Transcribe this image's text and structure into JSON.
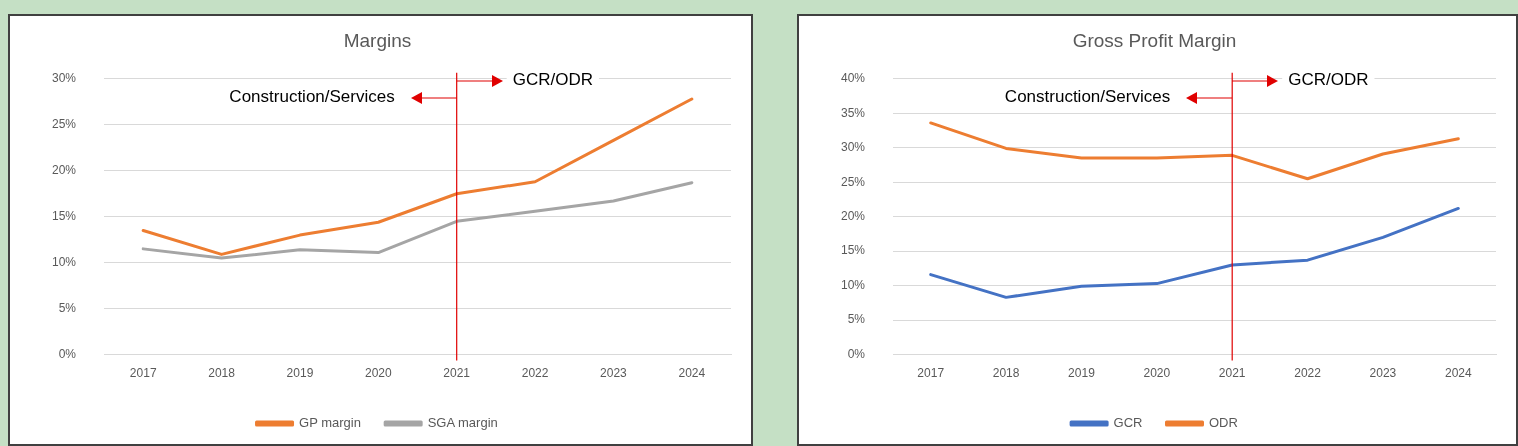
{
  "chart_data": [
    {
      "type": "line",
      "title": "Margins",
      "categories": [
        "2017",
        "2018",
        "2019",
        "2020",
        "2021",
        "2022",
        "2023",
        "2024"
      ],
      "series": [
        {
          "name": "GP margin",
          "color": "#ed7d31",
          "values": [
            13.5,
            10.9,
            13.0,
            14.4,
            17.5,
            18.8,
            23.3,
            27.8
          ]
        },
        {
          "name": "SGA margin",
          "color": "#a5a5a5",
          "values": [
            11.5,
            10.5,
            11.4,
            11.1,
            14.5,
            15.6,
            16.7,
            18.7
          ]
        }
      ],
      "ylim": [
        0,
        30
      ],
      "yticks": [
        {
          "value": 0,
          "label": "0%"
        },
        {
          "value": 5,
          "label": "5%"
        },
        {
          "value": 10,
          "label": "10%"
        },
        {
          "value": 15,
          "label": "15%"
        },
        {
          "value": 20,
          "label": "20%"
        },
        {
          "value": 25,
          "label": "25%"
        },
        {
          "value": 30,
          "label": "30%"
        }
      ],
      "grid": "y",
      "legend": "bottom",
      "marker": "none",
      "line_style": "solid",
      "ref_lines": [
        {
          "axis": "x",
          "value": "2021",
          "color": "#e00000"
        }
      ],
      "annotations": [
        "Construction/Services",
        {
          "text": "GCR/ODR",
          "x": "2021"
        }
      ]
    },
    {
      "type": "line",
      "title": "Gross Profit Margin",
      "categories": [
        "2017",
        "2018",
        "2019",
        "2020",
        "2021",
        "2022",
        "2023",
        "2024"
      ],
      "series": [
        {
          "name": "GCR",
          "color": "#4472c4",
          "values": [
            11.6,
            8.3,
            9.9,
            10.3,
            13.0,
            13.7,
            17.0,
            21.2
          ]
        },
        {
          "name": "ODR",
          "color": "#ed7d31",
          "values": [
            33.6,
            29.9,
            28.5,
            28.5,
            28.9,
            25.5,
            29.1,
            31.3
          ]
        }
      ],
      "ylim": [
        0,
        40
      ],
      "yticks": [
        {
          "value": 0,
          "label": "0%"
        },
        {
          "value": 5,
          "label": "5%"
        },
        {
          "value": 10,
          "label": "10%"
        },
        {
          "value": 15,
          "label": "15%"
        },
        {
          "value": 20,
          "label": "20%"
        },
        {
          "value": 25,
          "label": "25%"
        },
        {
          "value": 30,
          "label": "30%"
        },
        {
          "value": 35,
          "label": "35%"
        },
        {
          "value": 40,
          "label": "40%"
        }
      ],
      "grid": "y",
      "legend": "bottom",
      "marker": "none",
      "line_style": "solid",
      "ref_lines": [
        {
          "axis": "x",
          "value": "2021",
          "color": "#e00000"
        }
      ],
      "annotations": [
        "Construction/Services",
        {
          "text": "GCR/ODR",
          "x": "2021"
        }
      ]
    }
  ]
}
